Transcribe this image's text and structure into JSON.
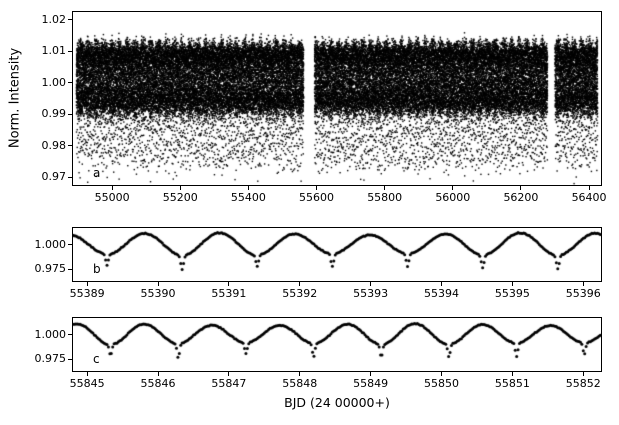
{
  "figure": {
    "xlabel": "BJD (24 00000+)",
    "ylabel": "Norm. Intensity",
    "background": "#ffffff",
    "point_color": "#000000"
  },
  "chart_data": [
    {
      "id": "a",
      "panel_label": "a",
      "type": "scatter",
      "description": "Full normalized light curve: dense black point cloud oscillating around 1.0 with periodic eclipse dips down to ~0.974 and two short data gaps",
      "xlim": [
        54885,
        56435
      ],
      "ylim": [
        0.9675,
        1.0225
      ],
      "xtick_values": [
        55000,
        55200,
        55400,
        55600,
        55800,
        56000,
        56200,
        56400
      ],
      "xtick_labels": [
        "55000",
        "55200",
        "55400",
        "55600",
        "55800",
        "56000",
        "56200",
        "56400"
      ],
      "ytick_values": [
        0.97,
        0.98,
        0.99,
        1.0,
        1.01,
        1.02
      ],
      "ytick_labels": [
        "0.97",
        "0.98",
        "0.99",
        "1.00",
        "1.01",
        "1.02"
      ],
      "model": {
        "t_start": 54895,
        "t_end": 56425,
        "dt": 0.03,
        "base": 1.0012,
        "amp": 0.0092,
        "amp_mod": [
          {
            "period": 23,
            "frac": 0.12
          },
          {
            "period": 5.1,
            "frac": 0.08
          }
        ],
        "period": 1.06,
        "t0": 55389.28,
        "eclipse_depth": 0.016,
        "eclipse_sigma": 0.015,
        "depth_jitter": 0.6,
        "noise": 0.004,
        "gaps": [
          [
            55562,
            55594
          ],
          [
            56278,
            56300
          ]
        ],
        "marker_size": 1.4,
        "marker_shape": "square"
      }
    },
    {
      "id": "b",
      "panel_label": "b",
      "type": "scatter",
      "description": "Zoom on BJD 55389-55396: smooth ~1.06 d sinusoidal modulation (0.99-1.012) with narrow eclipse dips to ~0.978",
      "xlim": [
        55388.8,
        55396.25
      ],
      "ylim": [
        0.963,
        1.017
      ],
      "xtick_values": [
        55389,
        55390,
        55391,
        55392,
        55393,
        55394,
        55395,
        55396
      ],
      "xtick_labels": [
        "55389",
        "55390",
        "55391",
        "55392",
        "55393",
        "55394",
        "55395",
        "55396"
      ],
      "ytick_values": [
        1.0,
        0.975
      ],
      "ytick_labels": [
        "1.000",
        "0.975"
      ],
      "model": {
        "t_start": 55388.8,
        "t_end": 55396.25,
        "dt": 0.02,
        "base": 1.0005,
        "amp": 0.0105,
        "amp_mod": [
          {
            "period": 4.7,
            "frac": 0.1
          }
        ],
        "period": 1.06,
        "t0": 55389.28,
        "eclipse_depth": 0.013,
        "eclipse_sigma": 0.018,
        "depth_jitter": 0.3,
        "noise": 0.0006,
        "gaps": [],
        "marker_size": 1.5,
        "marker_shape": "circle"
      }
    },
    {
      "id": "c",
      "panel_label": "c",
      "type": "scatter",
      "description": "Zoom on BJD 55845-55852: smooth ~0.95 d sinusoidal modulation with narrow eclipse dips to ~0.978",
      "xlim": [
        55844.8,
        55852.25
      ],
      "ylim": [
        0.963,
        1.017
      ],
      "xtick_values": [
        55845,
        55846,
        55847,
        55848,
        55849,
        55850,
        55851,
        55852
      ],
      "xtick_labels": [
        "55845",
        "55846",
        "55847",
        "55848",
        "55849",
        "55850",
        "55851",
        "55852"
      ],
      "ytick_values": [
        1.0,
        0.975
      ],
      "ytick_labels": [
        "1.000",
        "0.975"
      ],
      "model": {
        "t_start": 55844.8,
        "t_end": 55852.25,
        "dt": 0.02,
        "base": 1.0005,
        "amp": 0.0098,
        "amp_mod": [
          {
            "period": 4.3,
            "frac": 0.1
          }
        ],
        "period": 0.955,
        "t0": 55845.33,
        "eclipse_depth": 0.013,
        "eclipse_sigma": 0.018,
        "depth_jitter": 0.3,
        "noise": 0.0006,
        "gaps": [],
        "marker_size": 1.5,
        "marker_shape": "circle"
      }
    }
  ]
}
